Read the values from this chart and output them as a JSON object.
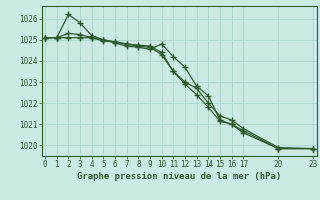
{
  "title": "Graphe pression niveau de la mer (hPa)",
  "bg_color": "#cceae4",
  "grid_color": "#aad4cc",
  "line_color": "#2d5a2d",
  "series1_x": [
    0,
    1,
    2,
    3,
    4,
    5,
    6,
    7,
    8,
    9,
    10,
    11,
    12,
    13,
    14,
    15,
    16,
    17,
    20,
    23
  ],
  "series1_y": [
    1025.1,
    1025.1,
    1026.2,
    1025.8,
    1025.2,
    1025.0,
    1024.85,
    1024.7,
    1024.65,
    1024.55,
    1024.8,
    1024.2,
    1023.7,
    1022.8,
    1022.35,
    1021.2,
    1021.0,
    1020.6,
    1019.85,
    1019.85
  ],
  "series2_x": [
    0,
    1,
    2,
    3,
    4,
    5,
    6,
    7,
    8,
    9,
    10,
    11,
    12,
    13,
    14,
    15,
    16,
    17,
    20,
    23
  ],
  "series2_y": [
    1025.1,
    1025.1,
    1025.3,
    1025.25,
    1025.1,
    1025.0,
    1024.9,
    1024.8,
    1024.7,
    1024.65,
    1024.3,
    1023.5,
    1022.9,
    1022.4,
    1021.8,
    1021.15,
    1021.0,
    1020.7,
    1019.85,
    1019.85
  ],
  "series3_x": [
    0,
    1,
    2,
    3,
    4,
    5,
    6,
    7,
    8,
    9,
    10,
    11,
    12,
    13,
    14,
    15,
    16,
    17,
    20,
    23
  ],
  "series3_y": [
    1025.1,
    1025.1,
    1025.1,
    1025.1,
    1025.1,
    1024.95,
    1024.9,
    1024.8,
    1024.75,
    1024.7,
    1024.4,
    1023.5,
    1023.0,
    1022.7,
    1022.0,
    1021.4,
    1021.2,
    1020.8,
    1019.9,
    1019.85
  ],
  "xticks": [
    0,
    1,
    2,
    3,
    4,
    5,
    6,
    7,
    8,
    9,
    10,
    11,
    12,
    13,
    14,
    15,
    16,
    17,
    20,
    23
  ],
  "xlim": [
    -0.3,
    23.3
  ],
  "ylim": [
    1019.5,
    1026.6
  ],
  "yticks": [
    1020,
    1021,
    1022,
    1023,
    1024,
    1025,
    1026
  ],
  "title_fontsize": 6.5,
  "tick_fontsize": 5.5
}
